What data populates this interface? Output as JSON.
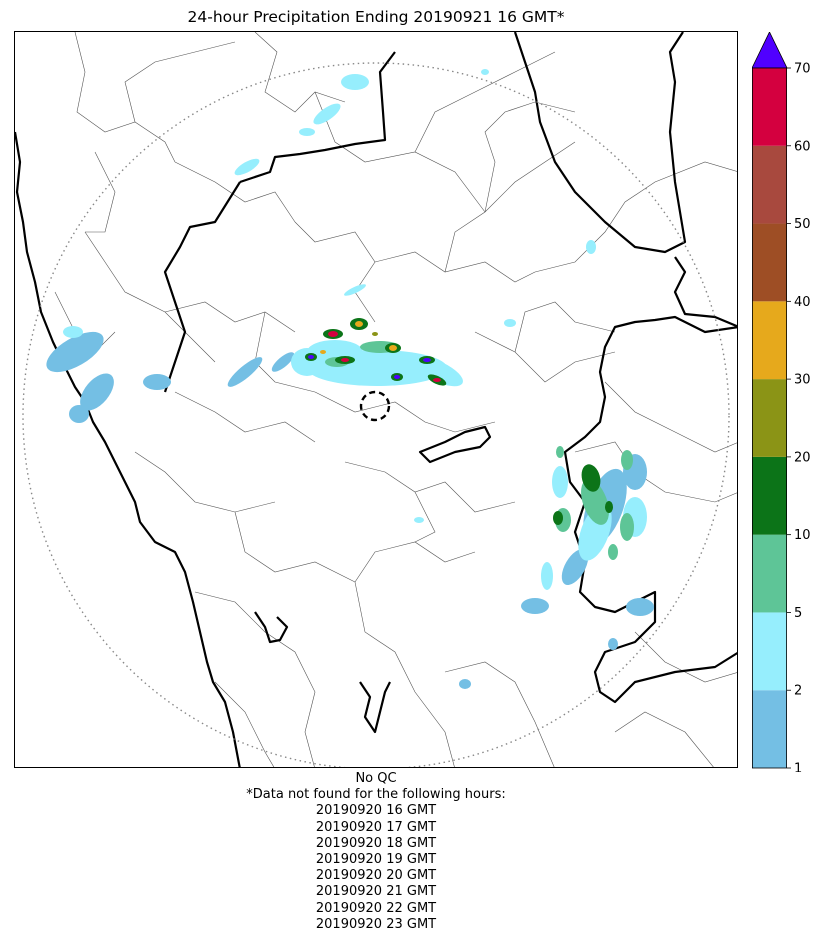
{
  "title": "24-hour Precipitation Ending 20190921 16 GMT*",
  "colorbar": {
    "unit": "",
    "levels": [
      1,
      2,
      5,
      10,
      20,
      30,
      40,
      50,
      60,
      70
    ],
    "tick_labels": [
      "1",
      "2",
      "5",
      "10",
      "20",
      "30",
      "40",
      "50",
      "60",
      "70"
    ],
    "colors": [
      "#74bfe4",
      "#96eefd",
      "#5ec597",
      "#0c7418",
      "#8b9416",
      "#e6a91c",
      "#9e4e25",
      "#a8493e",
      "#d4003f"
    ],
    "extend_color": "#5000ff",
    "extend": "max"
  },
  "map": {
    "radar_range_ring": "dotted",
    "radar_site_marker": "dashed-circle",
    "precip_regions": [
      {
        "area": "north-west band",
        "max_bin": "2-5"
      },
      {
        "area": "west coast",
        "max_bin": "2-5"
      },
      {
        "area": "central cluster",
        "max_bin": ">70"
      },
      {
        "area": "south-east cluster",
        "max_bin": "10-20"
      }
    ]
  },
  "footer": {
    "qc": "No QC",
    "note": "*Data not found for the following hours:",
    "missing_hours": [
      "20190920 16 GMT",
      "20190920 17 GMT",
      "20190920 18 GMT",
      "20190920 19 GMT",
      "20190920 20 GMT",
      "20190920 21 GMT",
      "20190920 22 GMT",
      "20190920 23 GMT"
    ]
  }
}
